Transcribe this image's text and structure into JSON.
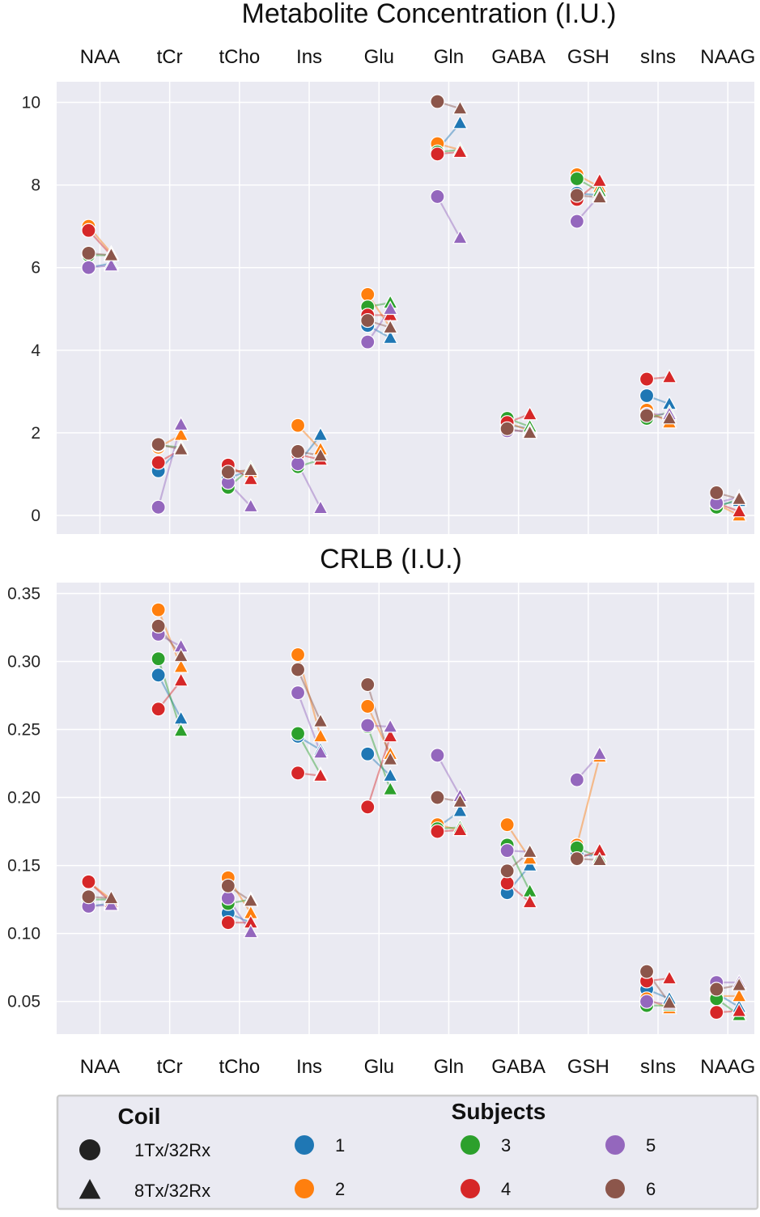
{
  "chart_data": [
    {
      "type": "scatter",
      "title": "Metabolite Concentration (I.U.)",
      "categories": [
        "NAA",
        "tCr",
        "tCho",
        "Ins",
        "Glu",
        "Gln",
        "GABA",
        "GSH",
        "sIns",
        "NAAG"
      ],
      "ylim": [
        -0.45,
        10.5
      ],
      "yticks": [
        0,
        2,
        4,
        6,
        8,
        10
      ],
      "ytick_labels": [
        "0",
        "2",
        "4",
        "6",
        "8",
        "10"
      ],
      "grid": true,
      "series": [
        {
          "subject": "1",
          "coil_1Tx_32Rx": [
            6.0,
            1.08,
            0.9,
            1.25,
            4.6,
            8.85,
            2.2,
            7.8,
            2.9,
            0.25
          ],
          "coil_8Tx_32Rx": [
            6.1,
            1.65,
            1.1,
            1.95,
            4.3,
            9.5,
            2.1,
            7.75,
            2.7,
            0.35
          ]
        },
        {
          "subject": "2",
          "coil_1Tx_32Rx": [
            7.0,
            1.65,
            1.1,
            2.18,
            5.35,
            9.0,
            2.25,
            8.25,
            2.55,
            0.28
          ],
          "coil_8Tx_32Rx": [
            6.35,
            1.95,
            1.05,
            1.6,
            4.55,
            8.85,
            2.05,
            7.95,
            2.25,
            0.0
          ]
        },
        {
          "subject": "3",
          "coil_1Tx_32Rx": [
            6.3,
            1.7,
            0.68,
            1.18,
            5.05,
            8.8,
            2.35,
            8.15,
            2.35,
            0.2
          ],
          "coil_8Tx_32Rx": [
            6.3,
            1.65,
            1.15,
            1.35,
            5.15,
            8.85,
            2.15,
            7.85,
            2.5,
            0.4
          ]
        },
        {
          "subject": "4",
          "coil_1Tx_32Rx": [
            6.9,
            1.28,
            1.22,
            1.48,
            4.85,
            8.75,
            2.25,
            7.65,
            3.3,
            0.3
          ],
          "coil_8Tx_32Rx": [
            6.3,
            1.6,
            0.88,
            1.35,
            4.85,
            8.8,
            2.45,
            8.1,
            3.35,
            0.1
          ]
        },
        {
          "subject": "5",
          "coil_1Tx_32Rx": [
            6.0,
            0.2,
            0.8,
            1.25,
            4.2,
            7.72,
            2.05,
            7.12,
            2.45,
            0.3
          ],
          "coil_8Tx_32Rx": [
            6.05,
            2.2,
            0.22,
            0.18,
            5.0,
            6.72,
            2.05,
            7.75,
            2.45,
            0.45
          ]
        },
        {
          "subject": "6",
          "coil_1Tx_32Rx": [
            6.35,
            1.72,
            1.05,
            1.55,
            4.72,
            10.02,
            2.1,
            7.75,
            2.42,
            0.55
          ],
          "coil_8Tx_32Rx": [
            6.3,
            1.6,
            1.1,
            1.45,
            4.55,
            9.85,
            2.0,
            7.7,
            2.35,
            0.4
          ]
        }
      ]
    },
    {
      "type": "scatter",
      "title": "CRLB (I.U.)",
      "categories": [
        "NAA",
        "tCr",
        "tCho",
        "Ins",
        "Glu",
        "Gln",
        "GABA",
        "GSH",
        "sIns",
        "NAAG"
      ],
      "ylim": [
        0.026,
        0.358
      ],
      "yticks": [
        0.05,
        0.1,
        0.15,
        0.2,
        0.25,
        0.3,
        0.35
      ],
      "ytick_labels": [
        "0.05",
        "0.10",
        "0.15",
        "0.20",
        "0.25",
        "0.30",
        "0.35"
      ],
      "grid": true,
      "series": [
        {
          "subject": "1",
          "coil_1Tx_32Rx": [
            0.12,
            0.29,
            0.115,
            0.245,
            0.232,
            0.178,
            0.13,
            0.158,
            0.059,
            0.056
          ],
          "coil_8Tx_32Rx": [
            0.122,
            0.258,
            0.108,
            0.235,
            0.216,
            0.19,
            0.15,
            0.157,
            0.052,
            0.046
          ]
        },
        {
          "subject": "2",
          "coil_1Tx_32Rx": [
            0.138,
            0.338,
            0.141,
            0.305,
            0.267,
            0.18,
            0.18,
            0.165,
            0.052,
            0.054
          ],
          "coil_8Tx_32Rx": [
            0.125,
            0.296,
            0.115,
            0.245,
            0.232,
            0.176,
            0.155,
            0.23,
            0.045,
            0.054
          ]
        },
        {
          "subject": "3",
          "coil_1Tx_32Rx": [
            0.125,
            0.302,
            0.122,
            0.247,
            0.252,
            0.177,
            0.165,
            0.163,
            0.047,
            0.052
          ],
          "coil_8Tx_32Rx": [
            0.125,
            0.249,
            0.125,
            0.217,
            0.206,
            0.178,
            0.131,
            0.156,
            0.047,
            0.04
          ]
        },
        {
          "subject": "4",
          "coil_1Tx_32Rx": [
            0.138,
            0.265,
            0.108,
            0.218,
            0.193,
            0.175,
            0.137,
            0.155,
            0.065,
            0.042
          ],
          "coil_8Tx_32Rx": [
            0.123,
            0.286,
            0.108,
            0.216,
            0.245,
            0.176,
            0.123,
            0.161,
            0.067,
            0.043
          ]
        },
        {
          "subject": "5",
          "coil_1Tx_32Rx": [
            0.12,
            0.32,
            0.126,
            0.277,
            0.253,
            0.231,
            0.161,
            0.213,
            0.05,
            0.064
          ],
          "coil_8Tx_32Rx": [
            0.121,
            0.311,
            0.101,
            0.233,
            0.252,
            0.201,
            0.16,
            0.232,
            0.048,
            0.064
          ]
        },
        {
          "subject": "6",
          "coil_1Tx_32Rx": [
            0.127,
            0.326,
            0.135,
            0.294,
            0.283,
            0.2,
            0.146,
            0.155,
            0.072,
            0.059
          ],
          "coil_8Tx_32Rx": [
            0.126,
            0.304,
            0.124,
            0.256,
            0.228,
            0.197,
            0.16,
            0.154,
            0.049,
            0.062
          ]
        }
      ]
    }
  ],
  "legend": {
    "coil_title": "Coil",
    "coil_items": [
      {
        "label": "1Tx/32Rx",
        "marker": "circle"
      },
      {
        "label": "8Tx/32Rx",
        "marker": "triangle"
      }
    ],
    "subjects_title": "Subjects",
    "subject_items": [
      {
        "label": "1",
        "color": "#1f77b4"
      },
      {
        "label": "2",
        "color": "#ff7f0e"
      },
      {
        "label": "3",
        "color": "#2ca02c"
      },
      {
        "label": "4",
        "color": "#d62728"
      },
      {
        "label": "5",
        "color": "#9467bd"
      },
      {
        "label": "6",
        "color": "#8c564b"
      }
    ]
  },
  "colors": {
    "panel_background": "#eaeaf2",
    "grid": "#ffffff",
    "marker_edge": "#ffffff",
    "legend_border": "#cccccc"
  }
}
